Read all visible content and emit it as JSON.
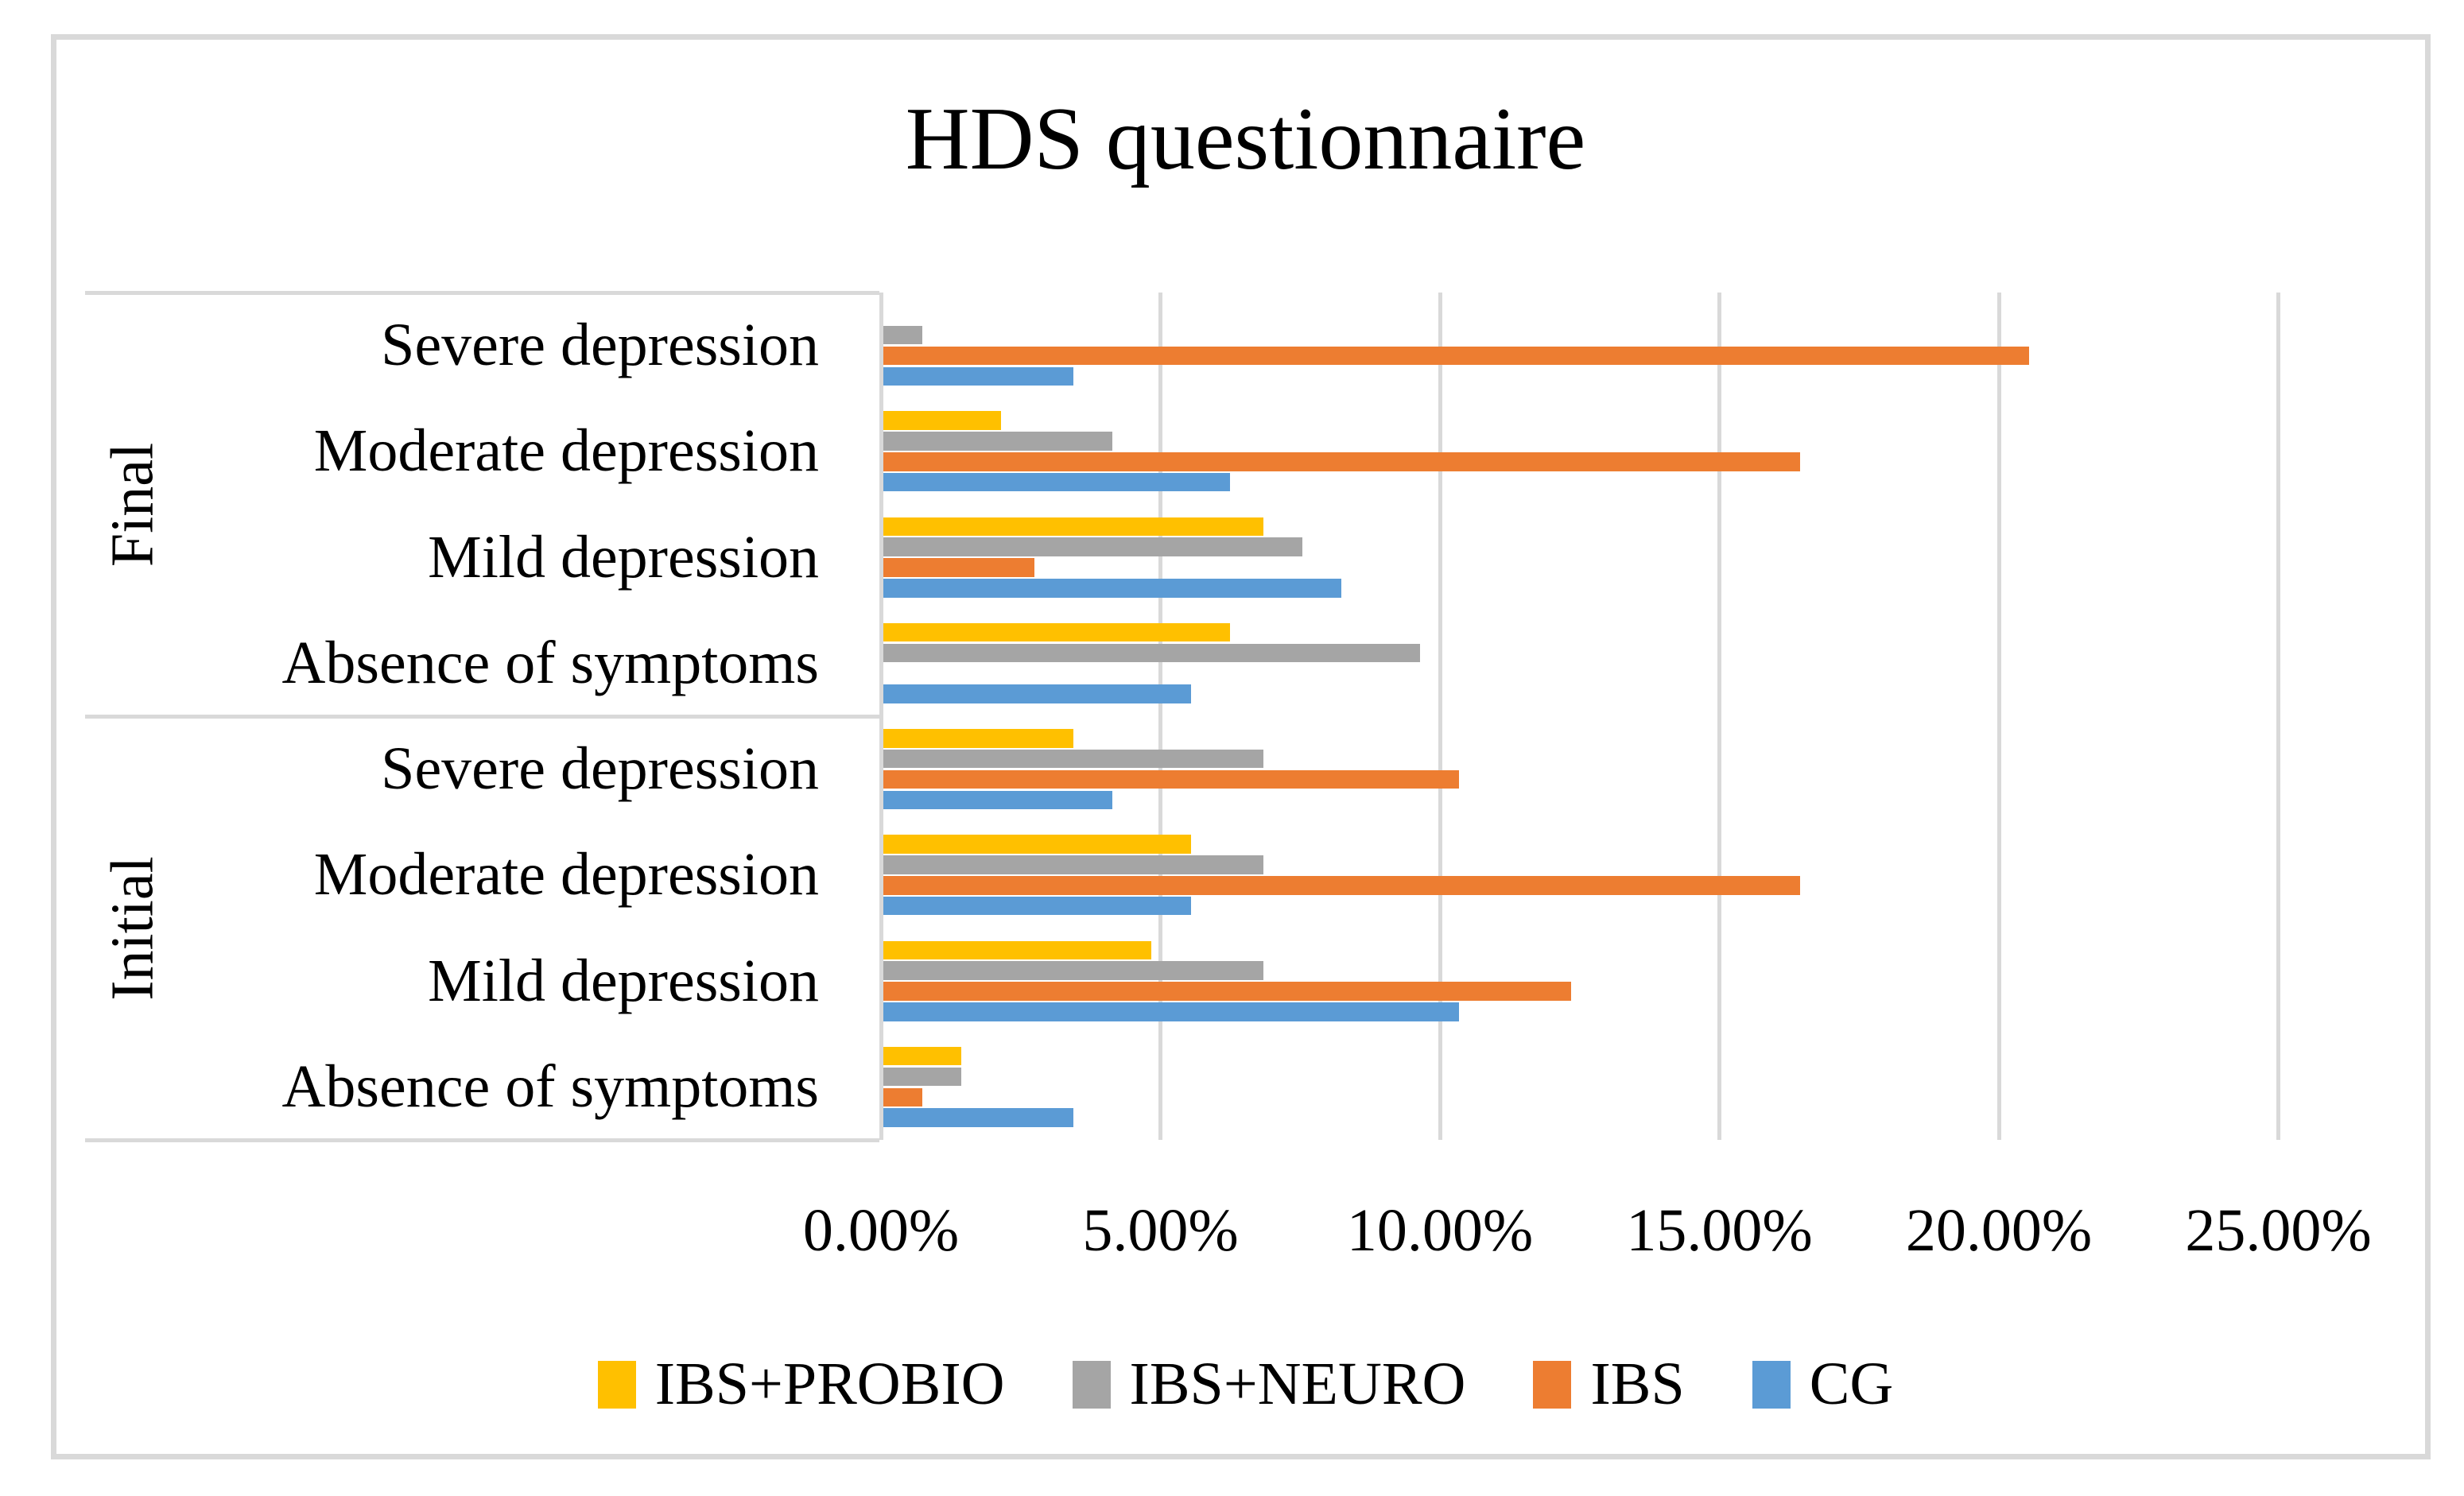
{
  "title": "HDS questionnaire",
  "chart_data": {
    "type": "bar",
    "orientation": "horizontal",
    "title": "HDS questionnaire",
    "xlabel": "",
    "ylabel": "",
    "xlim": [
      0,
      25
    ],
    "x_tick_values": [
      0,
      5,
      10,
      15,
      20,
      25
    ],
    "x_tick_labels": [
      "0.00%",
      "5.00%",
      "10.00%",
      "15.00%",
      "20.00%",
      "25.00%"
    ],
    "gridlines": true,
    "legend_position": "bottom",
    "value_unit": "%",
    "colors": {
      "gridline": "#D9D9D9",
      "axis_line": "#D9D9D9",
      "frame_border": "#D9D9D9",
      "text": "#000000"
    },
    "series": [
      {
        "name": "IBS+PROBIO",
        "color": "#FFC000"
      },
      {
        "name": "IBS+NEURO",
        "color": "#A5A5A5"
      },
      {
        "name": "IBS",
        "color": "#ED7D31"
      },
      {
        "name": "CG",
        "color": "#5B9BD5"
      }
    ],
    "groups": [
      {
        "label": "Final",
        "rows": [
          {
            "category": "Severe depression",
            "values": [
              0,
              0.7,
              20.5,
              3.4
            ]
          },
          {
            "category": "Moderate depression",
            "values": [
              2.1,
              4.1,
              16.4,
              6.2
            ]
          },
          {
            "category": "Mild depression",
            "values": [
              6.8,
              7.5,
              2.7,
              8.2
            ]
          },
          {
            "category": "Absence of symptoms",
            "values": [
              6.2,
              9.6,
              0,
              5.5
            ]
          }
        ]
      },
      {
        "label": "Initial",
        "rows": [
          {
            "category": "Severe depression",
            "values": [
              3.4,
              6.8,
              10.3,
              4.1
            ]
          },
          {
            "category": "Moderate depression",
            "values": [
              5.5,
              6.8,
              16.4,
              5.5
            ]
          },
          {
            "category": "Mild depression",
            "values": [
              4.8,
              6.8,
              12.3,
              10.3
            ]
          },
          {
            "category": "Absence of symptoms",
            "values": [
              1.4,
              1.4,
              0.7,
              3.4
            ]
          }
        ]
      }
    ]
  }
}
